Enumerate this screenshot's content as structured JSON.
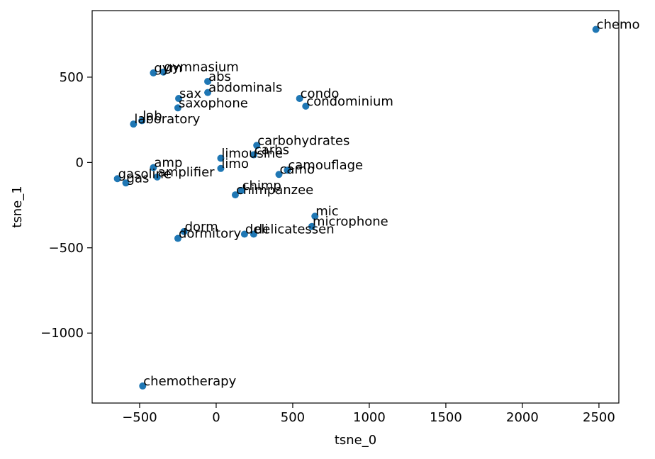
{
  "chart_data": {
    "type": "scatter",
    "title": "",
    "xlabel": "tsne_0",
    "ylabel": "tsne_1",
    "xlim": [
      -810,
      2630
    ],
    "ylim": [
      -1410,
      890
    ],
    "xticks": [
      -500,
      0,
      500,
      1000,
      1500,
      2000,
      2500
    ],
    "yticks": [
      -1000,
      -500,
      0,
      500
    ],
    "grid": false,
    "marker_color": "#1f77b4",
    "points": [
      {
        "label": "chemo",
        "x": 2480,
        "y": 780
      },
      {
        "label": "chemotherapy",
        "x": -480,
        "y": -1310
      },
      {
        "label": "gymnasium",
        "x": -345,
        "y": 530
      },
      {
        "label": "gym",
        "x": -410,
        "y": 525
      },
      {
        "label": "abs",
        "x": -55,
        "y": 475
      },
      {
        "label": "abdominals",
        "x": -55,
        "y": 410
      },
      {
        "label": "sax",
        "x": -245,
        "y": 375
      },
      {
        "label": "saxophone",
        "x": -250,
        "y": 320
      },
      {
        "label": "lab",
        "x": -485,
        "y": 245
      },
      {
        "label": "laboratory",
        "x": -540,
        "y": 225
      },
      {
        "label": "condo",
        "x": 545,
        "y": 375
      },
      {
        "label": "condominium",
        "x": 585,
        "y": 330
      },
      {
        "label": "carbohydrates",
        "x": 265,
        "y": 100
      },
      {
        "label": "carbs",
        "x": 245,
        "y": 45
      },
      {
        "label": "limousine",
        "x": 30,
        "y": 25
      },
      {
        "label": "limo",
        "x": 30,
        "y": -35
      },
      {
        "label": "camouflage",
        "x": 465,
        "y": -45
      },
      {
        "label": "camo",
        "x": 410,
        "y": -70
      },
      {
        "label": "amp",
        "x": -410,
        "y": -30
      },
      {
        "label": "amplifier",
        "x": -385,
        "y": -85
      },
      {
        "label": "gasoline",
        "x": -645,
        "y": -95
      },
      {
        "label": "gas",
        "x": -590,
        "y": -120
      },
      {
        "label": "chimp",
        "x": 165,
        "y": -165
      },
      {
        "label": "chimpanzee",
        "x": 125,
        "y": -190
      },
      {
        "label": "mic",
        "x": 645,
        "y": -315
      },
      {
        "label": "microphone",
        "x": 625,
        "y": -375
      },
      {
        "label": "dorm",
        "x": -210,
        "y": -405
      },
      {
        "label": "dormitory",
        "x": -250,
        "y": -445
      },
      {
        "label": "deli",
        "x": 185,
        "y": -420
      },
      {
        "label": "delicatessen",
        "x": 245,
        "y": -420
      }
    ]
  }
}
